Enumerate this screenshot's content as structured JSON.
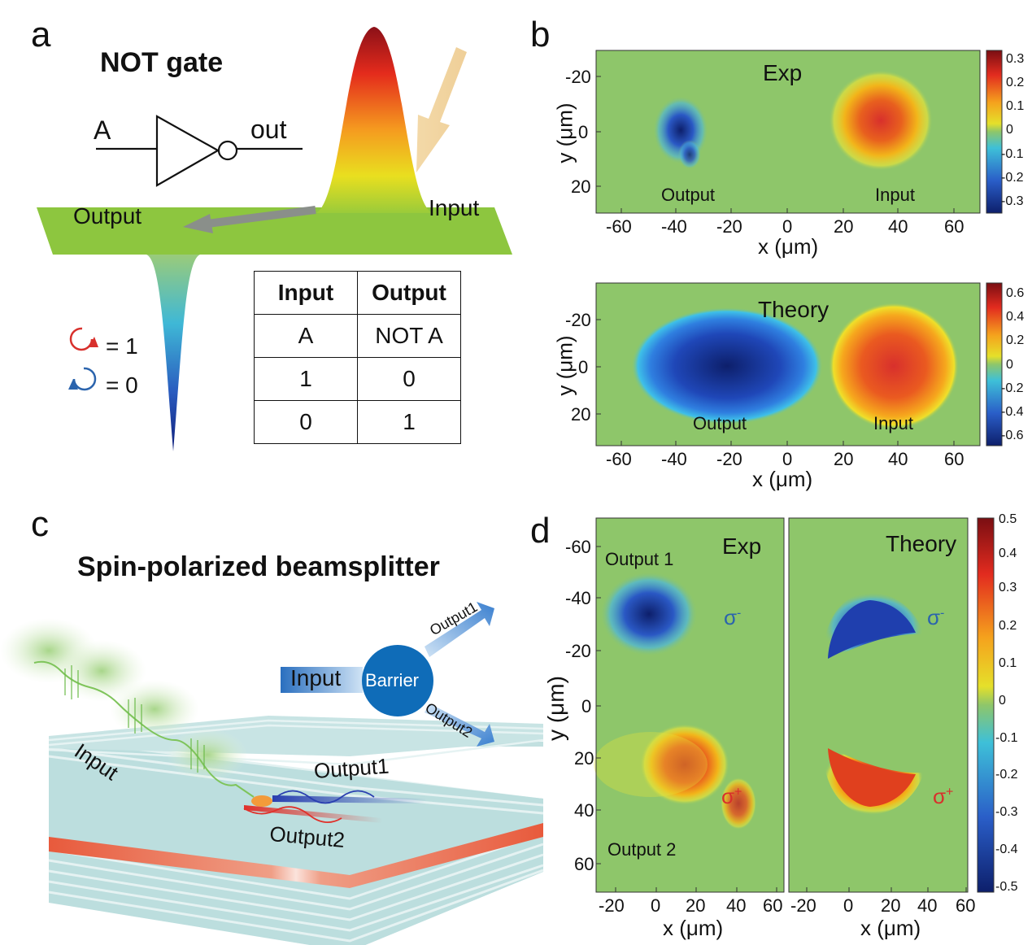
{
  "panel_a": {
    "label": "a",
    "title": "NOT gate",
    "gate_input": "A",
    "gate_output": "out",
    "output_label": "Output",
    "input_label": "Input",
    "legend": [
      {
        "text": "= 1",
        "color": "#d8302c",
        "icon": "clockwise-circle-arrow-icon"
      },
      {
        "text": "= 0",
        "color": "#2b64ad",
        "icon": "counterclockwise-circle-arrow-icon"
      }
    ],
    "truth_table": {
      "headers": [
        "Input",
        "Output"
      ],
      "rows": [
        [
          "A",
          "NOT A"
        ],
        [
          "1",
          "0"
        ],
        [
          "0",
          "1"
        ]
      ]
    }
  },
  "panel_b": {
    "label": "b",
    "exp": {
      "title": "Exp",
      "xlabel": "x (μm)",
      "ylabel": "y (μm)",
      "xticks": [
        "-60",
        "-40",
        "-20",
        "0",
        "20",
        "40",
        "60"
      ],
      "yticks": [
        "-20",
        "0",
        "20"
      ],
      "output_label": "Output",
      "input_label": "Input",
      "colorbar_ticks": [
        "0.3",
        "0.2",
        "0.1",
        "0",
        "-0.1",
        "-0.2",
        "-0.3"
      ]
    },
    "theory": {
      "title": "Theory",
      "xlabel": "x (μm)",
      "ylabel": "y (μm)",
      "xticks": [
        "-60",
        "-40",
        "-20",
        "0",
        "20",
        "40",
        "60"
      ],
      "yticks": [
        "-20",
        "0",
        "20"
      ],
      "output_label": "Output",
      "input_label": "Input",
      "colorbar_ticks": [
        "0.6",
        "0.4",
        "0.2",
        "0",
        "-0.2",
        "-0.4",
        "-0.6"
      ]
    }
  },
  "panel_c": {
    "label": "c",
    "title": "Spin-polarized beamsplitter",
    "input_label": "Input",
    "barrier_label": "Barrier",
    "output1_label": "Output1",
    "output2_label": "Output2",
    "wave_input_label": "Input",
    "wave_output1_label": "Output1",
    "wave_output2_label": "Output2"
  },
  "panel_d": {
    "label": "d",
    "ylabel": "y (μm)",
    "xlabel": "x (μm)",
    "yticks": [
      "-60",
      "-40",
      "-20",
      "0",
      "20",
      "40",
      "60"
    ],
    "xticks_exp": [
      "-20",
      "0",
      "20",
      "40",
      "60"
    ],
    "xticks_theory": [
      "-20",
      "0",
      "20",
      "40",
      "60"
    ],
    "exp_title": "Exp",
    "theory_title": "Theory",
    "output1_label": "Output 1",
    "output2_label": "Output 2",
    "sigma_minus_base": "σ",
    "sigma_minus_sup": "-",
    "sigma_plus_base": "σ",
    "sigma_plus_sup": "+",
    "colorbar_ticks": [
      "0.5",
      "0.4",
      "0.3",
      "0.2",
      "0.1",
      "0",
      "-0.1",
      "-0.2",
      "-0.3",
      "-0.4",
      "-0.5"
    ]
  },
  "colors": {
    "map_background": "#8ec66a",
    "positive": "#d8302c",
    "negative": "#1a3f9a",
    "sigma_minus": "#2b64ad",
    "sigma_plus": "#d8302c"
  }
}
